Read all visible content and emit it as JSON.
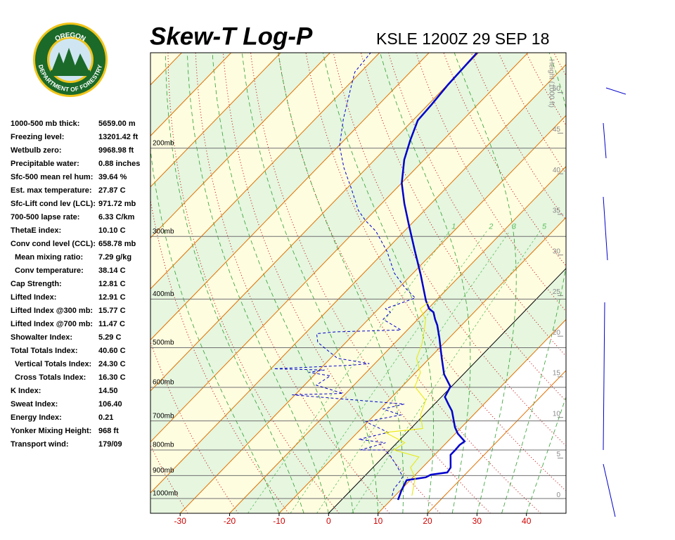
{
  "logo": {
    "top": "OREGON",
    "bottom": "DEPARTMENT OF FORESTRY"
  },
  "stats": [
    [
      "1000-500 mb thick:",
      "5659.00 m"
    ],
    [
      "Freezing level:",
      "13201.42 ft"
    ],
    [
      "Wetbulb zero:",
      "9968.98 ft"
    ],
    [
      "Precipitable water:",
      "0.88 inches"
    ],
    [
      "Sfc-500 mean rel hum:",
      "39.64 %"
    ],
    [
      "Est. max temperature:",
      "27.87 C"
    ],
    [
      "Sfc-Lift cond lev (LCL):",
      "971.72 mb"
    ],
    [
      "700-500 lapse rate:",
      "6.33 C/km"
    ],
    [
      "ThetaE index:",
      "10.10 C"
    ],
    [
      "Conv cond level (CCL):",
      "658.78 mb"
    ],
    [
      "Mean mixing ratio:",
      "7.29 g/kg"
    ],
    [
      "Conv temperature:",
      "38.14 C"
    ],
    [
      "Cap Strength:",
      "12.81 C"
    ],
    [
      "Lifted Index:",
      "12.91 C"
    ],
    [
      "Lifted Index @300 mb:",
      "15.77 C"
    ],
    [
      "Lifted Index @700 mb:",
      "11.47 C"
    ],
    [
      "Showalter Index:",
      "5.29 C"
    ],
    [
      "Total Totals Index:",
      "40.60 C"
    ],
    [
      "Vertical Totals Index:",
      "24.30 C"
    ],
    [
      "Cross Totals Index:",
      "16.30 C"
    ],
    [
      "K Index:",
      "14.50"
    ],
    [
      "Sweat Index:",
      "106.40"
    ],
    [
      "Energy Index:",
      "0.21"
    ],
    [
      "Yonker Mixing Height:",
      "968 ft"
    ],
    [
      "Transport wind:",
      "179/09"
    ]
  ],
  "chart_data": {
    "type": "skewt",
    "title": "Skew-T Log-P",
    "subtitle": "KSLE 1200Z 29 SEP 18",
    "xlim": [
      -36,
      48
    ],
    "xticks": [
      -30,
      -20,
      -10,
      0,
      10,
      20,
      30,
      40
    ],
    "ylim": [
      1070,
      129
    ],
    "log_scale": true,
    "yticks": [
      {
        "value": 1000,
        "label": "1000mb"
      },
      {
        "value": 900,
        "label": "900mb"
      },
      {
        "value": 800,
        "label": "800mb"
      },
      {
        "value": 700,
        "label": "700mb"
      },
      {
        "value": 600,
        "label": "600mb"
      },
      {
        "value": 500,
        "label": "500mb"
      },
      {
        "value": 400,
        "label": "400mb"
      },
      {
        "value": 300,
        "label": "300mb"
      },
      {
        "value": 200,
        "label": "200mb"
      }
    ],
    "height_label": "Height (1000 ft)",
    "hlim": [
      -1.8,
      54.9
    ],
    "hticks": [
      0,
      5,
      10,
      15,
      20,
      25,
      30,
      35,
      40,
      45,
      50
    ],
    "mixing_ratios": [
      1,
      2,
      3,
      5
    ],
    "series": [
      {
        "color": "#0000cc",
        "x": [
          11.4,
          10.3,
          9.6,
          9.3,
          12.6,
          13.1,
          16.0,
          15.7,
          13.2,
          13.2,
          13.1,
          13.4,
          10.5,
          8.7,
          4.9,
          2.8,
          0.7,
          -0.2,
          -3.9,
          -7.5,
          -12.1,
          -14.9,
          -16.5,
          -18.2,
          -19.8,
          -22.0,
          -28.1,
          -34.1,
          -40.4,
          -45.4,
          -49.9,
          -54.0,
          -56.6,
          -59.0,
          -59.3,
          -59.9,
          -60.3
        ],
        "values": [
          1006,
          965,
          934,
          919,
          907,
          896,
          887,
          867,
          818,
          800,
          782,
          769,
          742,
          721,
          669,
          648,
          627,
          598,
          565,
          525,
          477,
          451,
          439,
          425,
          418,
          403,
          358,
          320,
          284,
          258,
          235,
          211,
          193,
          176,
          164,
          149,
          129
        ]
      },
      {
        "color": "#0000cc",
        "dashed": true,
        "x": [
          9.4,
          8.4,
          8.2,
          7.8,
          5.0,
          1.6,
          -0.9,
          -6.0,
          -2.3,
          -8.4,
          -3.8,
          -10.4,
          -4.7,
          -9.4,
          -6.1,
          -30.6,
          -20.6,
          -27.6,
          -26.6,
          -31.6,
          -28.9,
          -39.4,
          -24.4,
          -21.1,
          -28.6,
          -35.7,
          -37.6,
          -34.2,
          -21.3,
          -27.0,
          -26.9,
          -28.6,
          -24.7,
          -28.9,
          -33.8,
          -39.4,
          -45.7,
          -49.9,
          -53.4,
          -59.0,
          -64.6,
          -69.8,
          -74.3,
          -78.4,
          -81.2,
          -81.8
        ],
        "values": [
          987,
          956,
          925,
          904,
          867,
          826,
          800,
          800,
          774,
          762,
          738,
          703,
          681,
          663,
          648,
          621,
          617,
          594,
          569,
          560,
          554,
          551,
          542,
          538,
          525,
          488,
          469,
          465,
          461,
          439,
          425,
          418,
          398,
          379,
          355,
          322,
          293,
          279,
          266,
          241,
          219,
          198,
          175,
          154,
          141,
          129
        ]
      },
      {
        "color": "#e8e800",
        "x": [
          13.4,
          10.6,
          7.6,
          7.2,
          0.8,
          1.6,
          -4.4,
          2.4,
          -0.7,
          -2.5,
          -7.4,
          -9.0,
          -12.6,
          -14.3,
          -16.6,
          -18.4,
          -21.6,
          -21.1
        ],
        "values": [
          987,
          910,
          867,
          826,
          800,
          774,
          738,
          725,
          681,
          637,
          598,
          561,
          525,
          492,
          461,
          439,
          418,
          405
        ]
      }
    ]
  }
}
